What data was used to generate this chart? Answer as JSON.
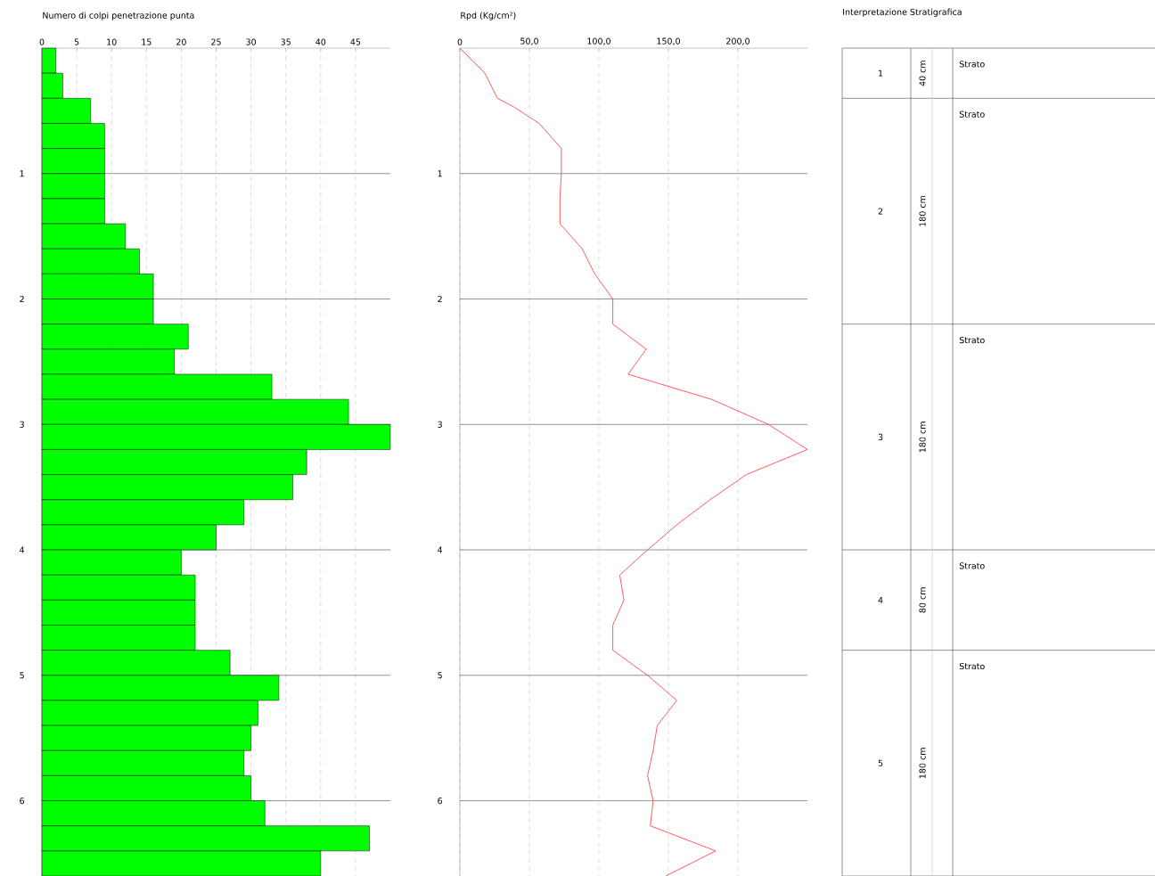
{
  "chart_data": [
    {
      "type": "histogram",
      "orientation": "horizontal",
      "xlabel": "Numero di colpi penetrazione punta",
      "color": "#00ff00",
      "bins": [
        0,
        0.2,
        0.4,
        0.6,
        0.8,
        1.0,
        1.2,
        1.4,
        1.6,
        1.8,
        2.0,
        2.2,
        2.4,
        2.6,
        2.8,
        3.0,
        3.2,
        3.4,
        3.6,
        3.8,
        4.0,
        4.2,
        4.4,
        4.6,
        4.8,
        5.0,
        5.2,
        5.4,
        5.6,
        5.8,
        6.0,
        6.2,
        6.4,
        6.6
      ],
      "values": [
        2,
        3,
        7,
        9,
        9,
        9,
        9,
        12,
        14,
        16,
        16,
        21,
        19,
        33,
        44,
        50,
        38,
        36,
        29,
        25,
        20,
        22,
        22,
        22,
        27,
        34,
        31,
        30,
        29,
        30,
        32,
        47,
        40
      ],
      "xlim": [
        0,
        50
      ],
      "xticks": [
        0,
        5,
        10,
        15,
        20,
        25,
        30,
        35,
        40,
        45
      ],
      "ylim": [
        6.6,
        0
      ],
      "yticks": [
        1,
        2,
        3,
        4,
        5,
        6
      ],
      "grid": true
    },
    {
      "type": "line",
      "orientation": "horizontal",
      "xlabel": "Rpd (Kg/cm²)",
      "color": "#ff3333",
      "x": [
        0,
        0.2,
        0.4,
        0.47,
        0.6,
        0.8,
        1.0,
        1.2,
        1.4,
        1.6,
        1.8,
        2.0,
        2.2,
        2.4,
        2.6,
        2.8,
        3.0,
        3.2,
        3.4,
        3.6,
        3.8,
        4.0,
        4.2,
        4.4,
        4.6,
        4.8,
        5.0,
        5.2,
        5.4,
        5.6,
        5.8,
        6.0,
        6.2,
        6.4,
        6.6
      ],
      "values": [
        0,
        18,
        27,
        39,
        57,
        73,
        73,
        72,
        72,
        88,
        97,
        110,
        110,
        134,
        121,
        181,
        222,
        250,
        206,
        180,
        156,
        135,
        115,
        118,
        110,
        110,
        135,
        156,
        142,
        139,
        135,
        139,
        137,
        184,
        148
      ],
      "xlim": [
        0,
        250
      ],
      "xticks": [
        0,
        {
          "value": 50,
          "label": "50,0"
        },
        {
          "value": 100,
          "label": "100,0"
        },
        {
          "value": 150,
          "label": "150,0"
        },
        {
          "value": 200,
          "label": "200,0"
        }
      ],
      "ylim": [
        6.6,
        0
      ],
      "yticks": [
        1,
        2,
        3,
        4,
        5,
        6
      ],
      "grid": true
    },
    {
      "type": "other",
      "title": "Interpretazione Stratigrafica",
      "categories": [
        "1",
        "2",
        "3",
        "4",
        "5"
      ],
      "values": [
        40,
        180,
        180,
        80,
        180
      ],
      "value_labels": [
        "40 cm",
        "180 cm",
        "180 cm",
        "80 cm",
        "180 cm"
      ],
      "annotations": [
        "Strato",
        "Strato",
        "Strato",
        "Strato",
        "Strato"
      ]
    }
  ]
}
